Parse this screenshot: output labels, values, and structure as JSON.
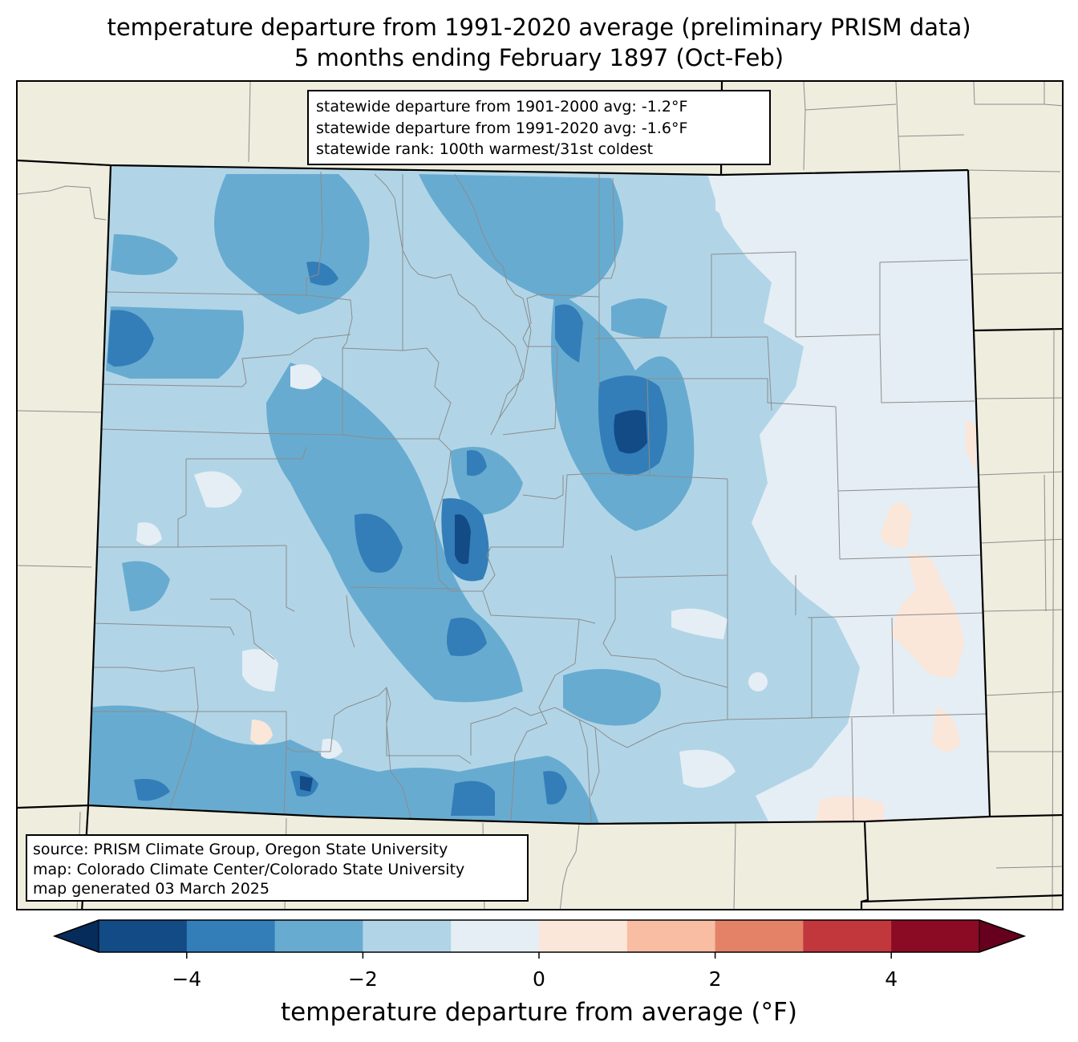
{
  "title": {
    "line1": "temperature departure from 1991-2020 average (preliminary PRISM data)",
    "line2": "5 months ending February 1897 (Oct-Feb)"
  },
  "stats": {
    "line1": "statewide departure from 1901-2000 avg: -1.2°F",
    "line2": "statewide departure from 1991-2020 avg: -1.6°F",
    "line3": "statewide rank: 100th warmest/31st coldest"
  },
  "source": {
    "line1": "source: PRISM Climate Group, Oregon State University",
    "line2": "map: Colorado Climate Center/Colorado State University",
    "line3": "map generated 03 March 2025"
  },
  "colorbar": {
    "label": "temperature departure from average (°F)",
    "ticks": [
      "−4",
      "−2",
      "0",
      "2",
      "4"
    ],
    "bins": [
      {
        "min": -5,
        "max": -4,
        "color": "#134b87"
      },
      {
        "min": -4,
        "max": -3,
        "color": "#337eb8"
      },
      {
        "min": -3,
        "max": -2,
        "color": "#68abd0"
      },
      {
        "min": -2,
        "max": -1,
        "color": "#b1d5e7"
      },
      {
        "min": -1,
        "max": 0,
        "color": "#e5eef4"
      },
      {
        "min": 0,
        "max": 1,
        "color": "#fbe6da"
      },
      {
        "min": 1,
        "max": 2,
        "color": "#f8bda2"
      },
      {
        "min": 2,
        "max": 3,
        "color": "#e48268"
      },
      {
        "min": 3,
        "max": 4,
        "color": "#c2373c"
      },
      {
        "min": 4,
        "max": 5,
        "color": "#8b0b25"
      }
    ],
    "under_color": "#062c5b",
    "over_color": "#67001f"
  },
  "map": {
    "land_color": "#efedde",
    "state_border_color": "#000000",
    "county_line_color": "#8c8c8c"
  }
}
